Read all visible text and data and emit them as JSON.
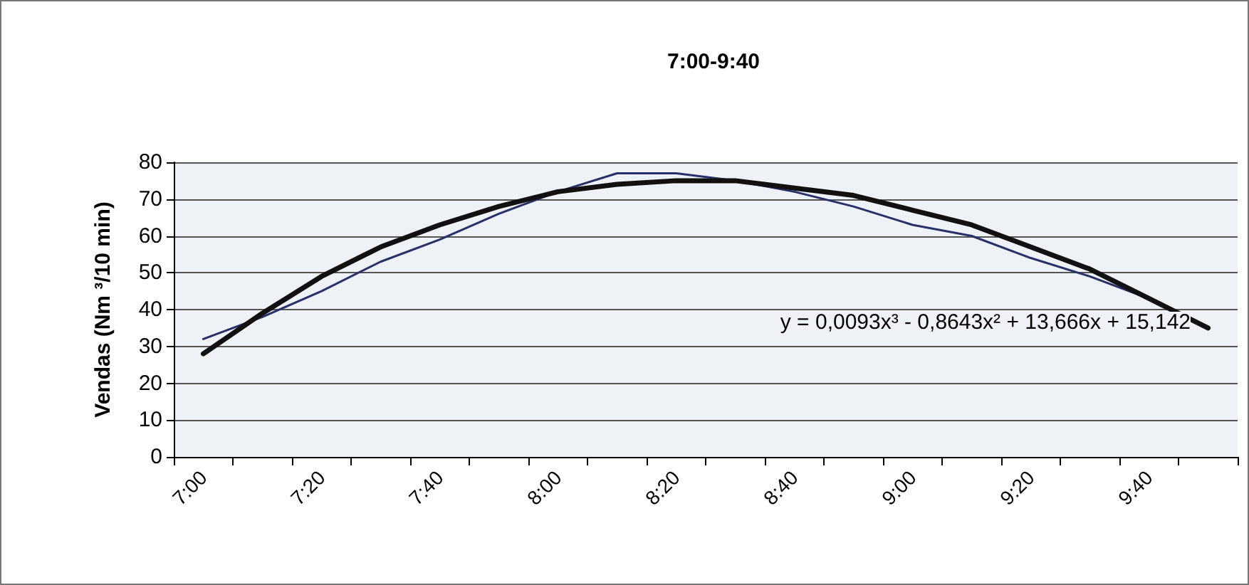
{
  "chart_data": {
    "type": "line",
    "title": "7:00-9:40",
    "ylabel": "Vendas (Nm ³/10 min)",
    "categories": [
      "7:00",
      null,
      "7:20",
      null,
      "7:40",
      null,
      "8:00",
      null,
      "8:20",
      null,
      "8:40",
      null,
      "9:00",
      null,
      "9:20",
      null,
      "9:40",
      null
    ],
    "series": [
      {
        "color": "#28306a",
        "values": [
          32,
          38,
          45,
          53,
          59,
          66,
          72,
          77,
          77,
          75,
          72,
          68,
          63,
          60,
          54,
          49,
          43,
          35
        ]
      },
      {
        "color": "#111111",
        "values": [
          28,
          39,
          49,
          57,
          63,
          68,
          72,
          74,
          75,
          75,
          73,
          71,
          67,
          63,
          57,
          51,
          43,
          35
        ]
      }
    ],
    "annotations": [
      "y = 0,0093x³ - 0,8643x² + 13,666x + 15,142"
    ],
    "ylim": [
      0,
      80
    ],
    "yticks": [
      0,
      10,
      20,
      30,
      40,
      50,
      60,
      70,
      80
    ],
    "grid": "y",
    "marker": "none",
    "line_style": "solid"
  }
}
